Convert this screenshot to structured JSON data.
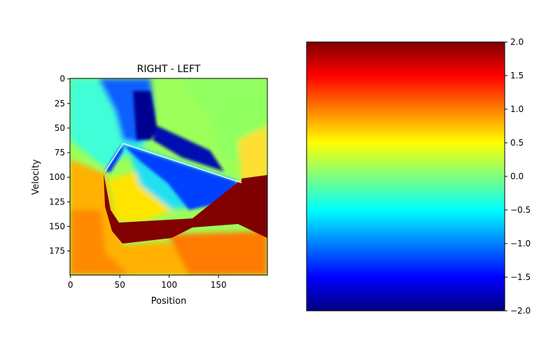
{
  "chart_data": [
    {
      "type": "heatmap",
      "title": "RIGHT - LEFT",
      "xlabel": "Position",
      "ylabel": "Velocity",
      "x_ticks": [
        0,
        50,
        100,
        150
      ],
      "y_ticks": [
        0,
        25,
        50,
        75,
        100,
        125,
        150,
        175
      ],
      "xlim": [
        0,
        199
      ],
      "ylim": [
        199,
        0
      ],
      "y_inverted": true,
      "grid": false,
      "colormap": "jet",
      "value_range": [
        -2.0,
        2.0
      ],
      "regions": [
        {
          "desc": "background",
          "value": 0.5
        },
        {
          "desc": "lower-left warm band",
          "value": 1.4
        },
        {
          "desc": "upper-left cyan cross",
          "value": -0.4
        },
        {
          "desc": "upper blue wedge",
          "value": -1.4
        },
        {
          "desc": "dark blue streak",
          "value": -1.9
        },
        {
          "desc": "central diagonal blue band",
          "value": -1.1
        },
        {
          "desc": "center yellow patch",
          "value": 0.7
        },
        {
          "desc": "inner cyan triangle",
          "value": -0.5
        },
        {
          "desc": "lower dark red region",
          "value": 2.0
        },
        {
          "desc": "right dark red block",
          "value": 2.0
        },
        {
          "desc": "lower orange area",
          "value": 1.6
        },
        {
          "desc": "right green zone",
          "value": 0.1
        }
      ]
    },
    {
      "type": "colorbar",
      "colormap": "jet",
      "ticks": [
        2.0,
        1.5,
        1.0,
        0.5,
        0.0,
        -0.5,
        -1.0,
        -1.5,
        -2.0
      ],
      "tick_labels": [
        "2.0",
        "1.5",
        "1.0",
        "0.5",
        "0.0",
        "−0.5",
        "−1.0",
        "−1.5",
        "−2.0"
      ],
      "range": [
        -2.0,
        2.0
      ]
    }
  ],
  "colors": {
    "jet_stops": [
      "#00007f",
      "#0000ff",
      "#007fff",
      "#00ffff",
      "#7fff7f",
      "#ffff00",
      "#ff7f00",
      "#ff0000",
      "#7f0000"
    ]
  }
}
